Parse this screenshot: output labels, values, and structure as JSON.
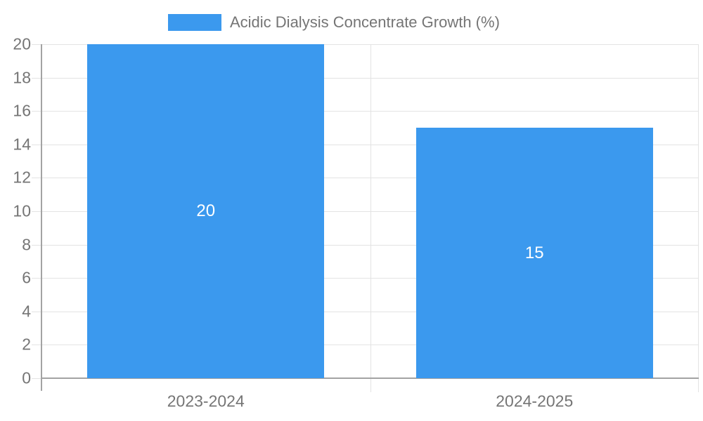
{
  "legend": {
    "label": "Acidic Dialysis Concentrate Growth (%)",
    "position": "top-center"
  },
  "chart_data": {
    "type": "bar",
    "series_name": "Acidic Dialysis Concentrate Growth (%)",
    "categories": [
      "2023-2024",
      "2024-2025"
    ],
    "values": [
      20,
      15
    ],
    "data_labels": [
      "20",
      "15"
    ],
    "yticks": [
      0,
      2,
      4,
      6,
      8,
      10,
      12,
      14,
      16,
      18,
      20
    ],
    "ylim": [
      0,
      20
    ],
    "xlabel": "",
    "ylabel": "",
    "grid": true,
    "legend_position": "top",
    "bar_color": "#3B99EE",
    "data_label_color": "#FFFFFF",
    "tick_label_color": "#757575",
    "legend_text_color": "#757575",
    "grid_color": "#E3E3E3",
    "axis_color": "#A3A3A3",
    "background_color": "#FFFFFF"
  }
}
